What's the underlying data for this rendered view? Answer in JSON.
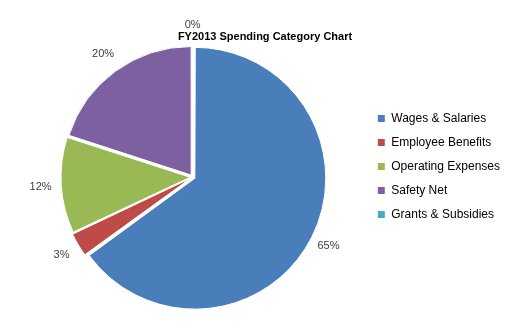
{
  "chart_data": {
    "type": "pie",
    "title": "FY2013 Spending Category Chart",
    "categories": [
      "Wages & Salaries",
      "Employee Benefits",
      "Operating Expenses",
      "Safety Net",
      "Grants & Subsidies"
    ],
    "values": [
      65,
      3,
      12,
      20,
      0
    ],
    "value_labels": [
      "65%",
      "3%",
      "12%",
      "20%",
      "0%"
    ],
    "colors": [
      "#4a7ebb",
      "#be4b48",
      "#98b954",
      "#7d60a0",
      "#46aac5"
    ],
    "data_labels": true,
    "legend": "right"
  }
}
